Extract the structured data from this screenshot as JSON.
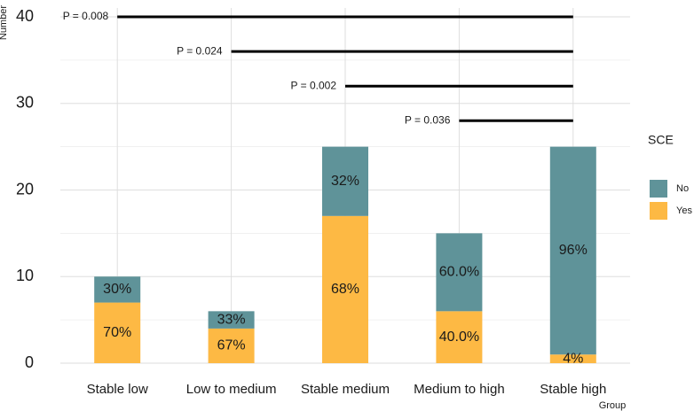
{
  "chart_data": {
    "type": "stacked_bar",
    "x_label": "Group",
    "y_label": "Number",
    "categories": [
      "Stable low",
      "Low to medium",
      "Stable medium",
      "Medium to high",
      "Stable high"
    ],
    "series": [
      {
        "name": "Yes",
        "color": "#fdb944",
        "values": [
          7,
          4,
          17,
          6,
          1
        ],
        "labels": [
          "70%",
          "67%",
          "68%",
          "40.0%",
          "4%"
        ]
      },
      {
        "name": "No",
        "color": "#5f9399",
        "values": [
          3,
          2,
          8,
          9,
          24
        ],
        "labels": [
          "30%",
          "33%",
          "32%",
          "60.0%",
          "96%"
        ]
      }
    ],
    "ylim": [
      0,
      40
    ],
    "yticks": [
      0,
      10,
      20,
      30,
      40
    ],
    "grid": true,
    "legend_title": "SCE",
    "annotations": [
      {
        "label": "P = 0.008",
        "y": 40,
        "from": "Stable low",
        "to": "Stable high"
      },
      {
        "label": "P = 0.024",
        "y": 36,
        "from": "Low to medium",
        "to": "Stable high"
      },
      {
        "label": "P = 0.002",
        "y": 32,
        "from": "Stable medium",
        "to": "Stable high"
      },
      {
        "label": "P = 0.036",
        "y": 28,
        "from": "Medium to high",
        "to": "Stable high"
      }
    ]
  }
}
